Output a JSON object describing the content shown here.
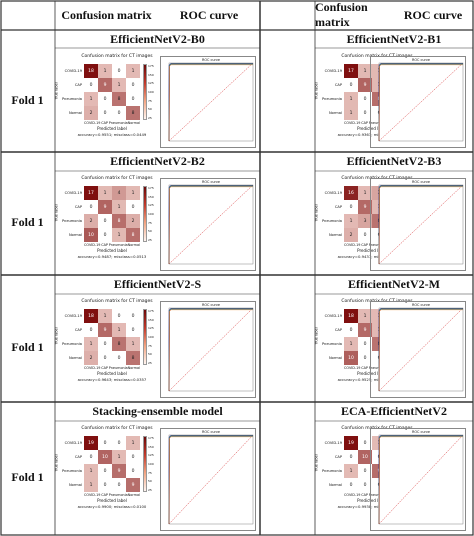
{
  "headers": {
    "left": {
      "confusion": "Confusion matrix",
      "roc": "ROC curve"
    },
    "right": {
      "confusion": "Confusion matrix",
      "roc": "ROC curve"
    }
  },
  "fold_label": "Fold 1",
  "rows": [
    {
      "left": {
        "model": "EfficientNetV2-B0",
        "cm": {
          "title": "Confusion matrix for CT images",
          "classes": [
            "COVID-19",
            "CAP",
            "Pneumonia",
            "Normal"
          ],
          "values": [
            [
              18,
              1,
              0,
              1
            ],
            [
              0,
              9,
              1,
              0
            ],
            [
              1,
              0,
              8,
              0
            ],
            [
              2,
              0,
              0,
              8
            ]
          ],
          "predicted_label": "Predicted label",
          "true_label": "True label",
          "accuracy": "accuracy=0.9551; misclass=0.0449"
        },
        "roc": {
          "title": "ROC curve"
        }
      },
      "right": {
        "model": "EfficientNetV2-B1",
        "cm": {
          "title": "Confusion matrix for CT images",
          "classes": [
            "COVID-19",
            "CAP",
            "Pneumonia",
            "Normal"
          ],
          "values": [
            [
              17,
              1,
              1,
              1
            ],
            [
              0,
              9,
              1,
              0
            ],
            [
              1,
              0,
              8,
              0
            ],
            [
              1,
              0,
              0,
              9
            ]
          ],
          "predicted_label": "Predicted label",
          "true_label": "True label",
          "accuracy": "accuracy=0.9363; misclass=0.0637"
        },
        "roc": {
          "title": "ROC curve"
        }
      }
    },
    {
      "left": {
        "model": "EfficientNetV2-B2",
        "cm": {
          "title": "Confusion matrix for CT images",
          "classes": [
            "COVID-19",
            "CAP",
            "Pneumonia",
            "Normal"
          ],
          "values": [
            [
              17,
              1,
              4,
              1
            ],
            [
              0,
              9,
              1,
              0
            ],
            [
              2,
              0,
              8,
              2
            ],
            [
              10,
              0,
              1,
              8
            ]
          ],
          "predicted_label": "Predicted label",
          "true_label": "True label",
          "accuracy": "accuracy=0.9487; misclass=0.0513"
        },
        "roc": {
          "title": "ROC curve"
        }
      },
      "right": {
        "model": "EfficientNetV2-B3",
        "cm": {
          "title": "Confusion matrix for CT images",
          "classes": [
            "COVID-19",
            "CAP",
            "Pneumonia",
            "Normal"
          ],
          "values": [
            [
              16,
              1,
              3,
              18
            ],
            [
              0,
              9,
              1,
              0
            ],
            [
              1,
              3,
              8,
              0
            ],
            [
              2,
              0,
              0,
              8
            ]
          ],
          "predicted_label": "Predicted label",
          "true_label": "True label",
          "accuracy": "accuracy=0.9437; misclass=0.0563"
        },
        "roc": {
          "title": "ROC curve"
        }
      }
    },
    {
      "left": {
        "model": "EfficientNetV2-S",
        "cm": {
          "title": "Confusion matrix for CT images",
          "classes": [
            "COVID-19",
            "CAP",
            "Pneumonia",
            "Normal"
          ],
          "values": [
            [
              18,
              1,
              0,
              0
            ],
            [
              0,
              9,
              1,
              0
            ],
            [
              1,
              0,
              8,
              1
            ],
            [
              2,
              0,
              0,
              8
            ]
          ],
          "predicted_label": "Predicted label",
          "true_label": "True label",
          "accuracy": "accuracy=0.9643; misclass=0.0357"
        },
        "roc": {
          "title": "ROC curve"
        }
      },
      "right": {
        "model": "EfficientNetV2-M",
        "cm": {
          "title": "Confusion matrix for CT images",
          "classes": [
            "COVID-19",
            "CAP",
            "Pneumonia",
            "Normal"
          ],
          "values": [
            [
              18,
              1,
              1,
              0
            ],
            [
              0,
              9,
              1,
              0
            ],
            [
              1,
              0,
              8,
              1
            ],
            [
              10,
              0,
              0,
              8
            ]
          ],
          "predicted_label": "Predicted label",
          "true_label": "True label",
          "accuracy": "accuracy=0.9525; misclass=0.0475"
        },
        "roc": {
          "title": "ROC curve"
        }
      }
    },
    {
      "left": {
        "model": "Stacking-ensemble model",
        "cm": {
          "title": "Confusion matrix for CT images",
          "classes": [
            "COVID-19",
            "CAP",
            "Pneumonia",
            "Normal"
          ],
          "values": [
            [
              19,
              0,
              0,
              1
            ],
            [
              0,
              10,
              1,
              0
            ],
            [
              1,
              0,
              9,
              0
            ],
            [
              1,
              0,
              0,
              9
            ]
          ],
          "predicted_label": "Predicted label",
          "true_label": "True label",
          "accuracy": "accuracy=0.9900; misclass=0.0100"
        },
        "roc": {
          "title": "ROC curve"
        }
      },
      "right": {
        "model": "ECA-EfficientNetV2",
        "cm": {
          "title": "Confusion matrix for CT images",
          "classes": [
            "COVID-19",
            "CAP",
            "Pneumonia",
            "Normal"
          ],
          "values": [
            [
              19,
              0,
              1,
              0
            ],
            [
              0,
              10,
              0,
              0
            ],
            [
              1,
              0,
              9,
              0
            ],
            [
              0,
              0,
              0,
              10
            ]
          ],
          "predicted_label": "Predicted label",
          "true_label": "True label",
          "accuracy": "accuracy=0.9938; misclass=0.0062"
        },
        "roc": {
          "title": "ROC curve"
        }
      }
    }
  ],
  "colors": {
    "cm_dark": "#7f0f0f",
    "cm_light": "#fbe3dc",
    "roc_micro": "#f6c500",
    "roc_macro": "#1f2a8a",
    "chance": "#d62728"
  },
  "cbar_ticks": [
    "175",
    "150",
    "125",
    "100",
    "75",
    "50",
    "25"
  ]
}
